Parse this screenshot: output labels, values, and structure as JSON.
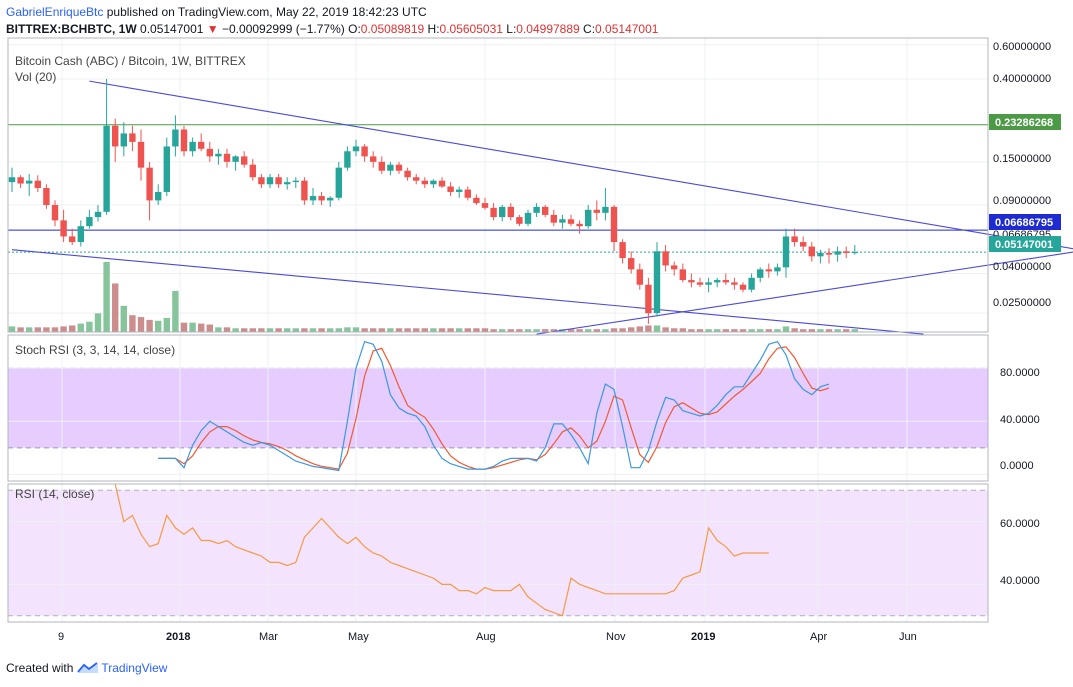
{
  "header": {
    "author": "GabrielEnriqueBtc",
    "published_text": "published on TradingView.com, May 22, 2019 18:42:23 UTC",
    "symbol": "BITTREX:BCHBTC, 1W",
    "last": "0.05147001",
    "change_arrow": "▼",
    "change": "−0.00092999 (−1.77%)",
    "o_label": "O:",
    "o": "0.05089819",
    "h_label": "H:",
    "h": "0.05605031",
    "l_label": "L:",
    "l": "0.04997889",
    "c_label": "C:",
    "c": "0.05147001"
  },
  "price_pane": {
    "title": "Bitcoin Cash (ABC) / Bitcoin, 1W, BITTREX",
    "vol_label": "Vol (20)",
    "price_labels": [
      "0.60000000",
      "0.40000000",
      "0.15000000",
      "0.09000000",
      "0.04000000",
      "0.02500000"
    ],
    "marker_green": "0.23286268",
    "marker_blue": "0.06686795",
    "marker_teal": "0.05147001",
    "hidden_marker": "0.06686795"
  },
  "stoch_pane": {
    "title": "Stoch RSI (3, 3, 14, 14, close)",
    "labels": [
      "80.0000",
      "40.0000",
      "0.0000"
    ]
  },
  "rsi_pane": {
    "title": "RSI (14, close)",
    "labels": [
      "60.0000",
      "40.0000"
    ]
  },
  "time_axis": [
    "9",
    "2018",
    "Mar",
    "May",
    "Aug",
    "Nov",
    "2019",
    "Apr",
    "Jun"
  ],
  "footer": {
    "created_with": "Created with",
    "brand": "TradingView"
  },
  "colors": {
    "up": "#26a69a",
    "down": "#ef5350",
    "vol_up": "#86c49c",
    "vol_down": "#cc8d8d",
    "trend": "#4a4ad8",
    "green_line": "#4c9a45",
    "blue_line": "#1d2bd0",
    "stoch_k": "#3d98e0",
    "stoch_d": "#f05a30",
    "rsi": "#f59a45",
    "stoch_band": "#e6ccff",
    "rsi_band": "#f3e3fd"
  },
  "chart_data": [
    {
      "type": "candlestick",
      "title": "Bitcoin Cash (ABC) / Bitcoin, 1W, BITTREX",
      "yscale": "log",
      "ylim": [
        0.02,
        0.65
      ],
      "x_ticks": [
        "9",
        "2018",
        "Mar",
        "May",
        "Aug",
        "Nov",
        "2019",
        "Apr",
        "Jun"
      ],
      "candles": [
        [
          0.118,
          0.14,
          0.105,
          0.125
        ],
        [
          0.125,
          0.128,
          0.11,
          0.116
        ],
        [
          0.116,
          0.13,
          0.1,
          0.12
        ],
        [
          0.12,
          0.128,
          0.105,
          0.11
        ],
        [
          0.11,
          0.115,
          0.086,
          0.09
        ],
        [
          0.09,
          0.095,
          0.07,
          0.075
        ],
        [
          0.075,
          0.085,
          0.058,
          0.062
        ],
        [
          0.062,
          0.068,
          0.056,
          0.058
        ],
        [
          0.058,
          0.075,
          0.055,
          0.07
        ],
        [
          0.07,
          0.085,
          0.068,
          0.078
        ],
        [
          0.078,
          0.09,
          0.074,
          0.083
        ],
        [
          0.083,
          0.4,
          0.08,
          0.23
        ],
        [
          0.23,
          0.25,
          0.15,
          0.18
        ],
        [
          0.18,
          0.24,
          0.16,
          0.21
        ],
        [
          0.21,
          0.23,
          0.17,
          0.19
        ],
        [
          0.19,
          0.22,
          0.12,
          0.14
        ],
        [
          0.14,
          0.15,
          0.075,
          0.095
        ],
        [
          0.095,
          0.115,
          0.09,
          0.105
        ],
        [
          0.105,
          0.2,
          0.1,
          0.18
        ],
        [
          0.18,
          0.26,
          0.16,
          0.22
        ],
        [
          0.22,
          0.23,
          0.16,
          0.17
        ],
        [
          0.17,
          0.2,
          0.16,
          0.19
        ],
        [
          0.19,
          0.21,
          0.17,
          0.175
        ],
        [
          0.175,
          0.19,
          0.15,
          0.16
        ],
        [
          0.16,
          0.175,
          0.145,
          0.165
        ],
        [
          0.165,
          0.175,
          0.14,
          0.15
        ],
        [
          0.15,
          0.162,
          0.135,
          0.16
        ],
        [
          0.16,
          0.17,
          0.14,
          0.145
        ],
        [
          0.145,
          0.155,
          0.12,
          0.125
        ],
        [
          0.125,
          0.13,
          0.11,
          0.115
        ],
        [
          0.115,
          0.13,
          0.11,
          0.125
        ],
        [
          0.125,
          0.13,
          0.11,
          0.115
        ],
        [
          0.115,
          0.125,
          0.108,
          0.118
        ],
        [
          0.118,
          0.125,
          0.11,
          0.12
        ],
        [
          0.12,
          0.125,
          0.09,
          0.095
        ],
        [
          0.095,
          0.11,
          0.09,
          0.1
        ],
        [
          0.1,
          0.105,
          0.09,
          0.095
        ],
        [
          0.095,
          0.1,
          0.088,
          0.098
        ],
        [
          0.098,
          0.15,
          0.095,
          0.14
        ],
        [
          0.14,
          0.18,
          0.135,
          0.17
        ],
        [
          0.17,
          0.195,
          0.16,
          0.18
        ],
        [
          0.18,
          0.185,
          0.15,
          0.16
        ],
        [
          0.16,
          0.17,
          0.14,
          0.15
        ],
        [
          0.15,
          0.16,
          0.13,
          0.135
        ],
        [
          0.135,
          0.15,
          0.128,
          0.145
        ],
        [
          0.145,
          0.15,
          0.13,
          0.135
        ],
        [
          0.135,
          0.14,
          0.12,
          0.125
        ],
        [
          0.125,
          0.13,
          0.115,
          0.12
        ],
        [
          0.12,
          0.125,
          0.11,
          0.115
        ],
        [
          0.115,
          0.122,
          0.11,
          0.12
        ],
        [
          0.12,
          0.125,
          0.11,
          0.112
        ],
        [
          0.112,
          0.118,
          0.1,
          0.105
        ],
        [
          0.105,
          0.112,
          0.098,
          0.108
        ],
        [
          0.108,
          0.112,
          0.095,
          0.098
        ],
        [
          0.098,
          0.102,
          0.09,
          0.092
        ],
        [
          0.092,
          0.098,
          0.085,
          0.087
        ],
        [
          0.087,
          0.092,
          0.075,
          0.078
        ],
        [
          0.078,
          0.09,
          0.074,
          0.088
        ],
        [
          0.088,
          0.092,
          0.075,
          0.078
        ],
        [
          0.078,
          0.08,
          0.07,
          0.072
        ],
        [
          0.072,
          0.085,
          0.07,
          0.082
        ],
        [
          0.082,
          0.092,
          0.078,
          0.088
        ],
        [
          0.088,
          0.09,
          0.078,
          0.08
        ],
        [
          0.08,
          0.085,
          0.07,
          0.073
        ],
        [
          0.073,
          0.08,
          0.068,
          0.076
        ],
        [
          0.076,
          0.08,
          0.07,
          0.072
        ],
        [
          0.072,
          0.075,
          0.064,
          0.07
        ],
        [
          0.07,
          0.09,
          0.068,
          0.085
        ],
        [
          0.085,
          0.095,
          0.075,
          0.082
        ],
        [
          0.082,
          0.11,
          0.075,
          0.088
        ],
        [
          0.088,
          0.09,
          0.052,
          0.058
        ],
        [
          0.058,
          0.06,
          0.045,
          0.048
        ],
        [
          0.048,
          0.052,
          0.04,
          0.042
        ],
        [
          0.042,
          0.045,
          0.033,
          0.035
        ],
        [
          0.035,
          0.038,
          0.022,
          0.025
        ],
        [
          0.025,
          0.058,
          0.024,
          0.052
        ],
        [
          0.052,
          0.056,
          0.041,
          0.044
        ],
        [
          0.044,
          0.046,
          0.039,
          0.042
        ],
        [
          0.042,
          0.045,
          0.036,
          0.037
        ],
        [
          0.037,
          0.04,
          0.034,
          0.036
        ],
        [
          0.036,
          0.038,
          0.034,
          0.035
        ],
        [
          0.035,
          0.038,
          0.032,
          0.036
        ],
        [
          0.036,
          0.038,
          0.034,
          0.037
        ],
        [
          0.037,
          0.04,
          0.035,
          0.036
        ],
        [
          0.036,
          0.038,
          0.033,
          0.035
        ],
        [
          0.035,
          0.036,
          0.032,
          0.033
        ],
        [
          0.033,
          0.04,
          0.032,
          0.038
        ],
        [
          0.038,
          0.043,
          0.036,
          0.042
        ],
        [
          0.042,
          0.045,
          0.038,
          0.041
        ],
        [
          0.041,
          0.045,
          0.039,
          0.043
        ],
        [
          0.043,
          0.068,
          0.038,
          0.062
        ],
        [
          0.062,
          0.068,
          0.055,
          0.058
        ],
        [
          0.058,
          0.062,
          0.052,
          0.055
        ],
        [
          0.055,
          0.058,
          0.046,
          0.049
        ],
        [
          0.049,
          0.053,
          0.045,
          0.051
        ],
        [
          0.051,
          0.054,
          0.045,
          0.05
        ],
        [
          0.05,
          0.055,
          0.046,
          0.052
        ],
        [
          0.052,
          0.055,
          0.048,
          0.051
        ],
        [
          0.051,
          0.056,
          0.05,
          0.0515
        ]
      ],
      "volume": [
        6,
        5,
        5,
        5,
        5,
        5,
        6,
        7,
        9,
        11,
        20,
        75,
        52,
        28,
        18,
        16,
        13,
        12,
        15,
        44,
        10,
        10,
        9,
        8,
        5,
        5,
        4,
        4,
        4,
        4,
        4,
        4,
        4,
        4,
        4,
        4,
        4,
        4,
        4,
        5,
        5,
        4,
        4,
        4,
        4,
        4,
        4,
        4,
        4,
        4,
        4,
        4,
        4,
        4,
        4,
        4,
        3,
        3,
        3,
        3,
        3,
        3,
        3,
        3,
        3,
        3,
        3,
        3,
        3,
        3,
        4,
        4,
        5,
        6,
        7,
        7,
        5,
        4,
        4,
        3,
        3,
        3,
        3,
        3,
        3,
        3,
        3,
        3,
        3,
        3,
        6,
        4,
        3,
        3,
        3,
        3,
        3,
        3,
        3
      ],
      "horizontal_levels": [
        0.23286268,
        0.06686795,
        0.05147001
      ],
      "trendlines": [
        {
          "from": {
            "bar": 9,
            "price": 0.39
          },
          "to": {
            "bar": 131,
            "price": 0.047
          }
        },
        {
          "from": {
            "bar": 0,
            "price": 0.053
          },
          "to": {
            "bar": 106,
            "price": 0.0195
          }
        },
        {
          "from": {
            "bar": 61,
            "price": 0.0195
          },
          "to": {
            "bar": 131,
            "price": 0.058
          }
        }
      ]
    },
    {
      "type": "line",
      "title": "Stoch RSI (3, 3, 14, 14, close)",
      "ylim": [
        -5,
        105
      ],
      "band": [
        20,
        80
      ],
      "series": [
        {
          "name": "K",
          "start_bar": 17,
          "values": [
            12,
            12,
            12,
            5,
            22,
            33,
            40,
            36,
            32,
            28,
            24,
            22,
            24,
            22,
            18,
            14,
            10,
            8,
            6,
            5,
            4,
            3,
            40,
            80,
            100,
            98,
            85,
            60,
            50,
            46,
            44,
            36,
            22,
            12,
            8,
            6,
            4,
            4,
            4,
            6,
            10,
            12,
            12,
            12,
            10,
            20,
            38,
            38,
            30,
            20,
            8,
            46,
            68,
            64,
            36,
            5,
            5,
            18,
            40,
            58,
            56,
            48,
            46,
            44,
            46,
            52,
            60,
            66,
            66,
            76,
            86,
            98,
            100,
            90,
            72,
            64,
            60,
            66,
            68
          ]
        },
        {
          "name": "D",
          "start_bar": 17,
          "values": [
            12,
            12,
            12,
            8,
            14,
            24,
            32,
            36,
            36,
            33,
            29,
            26,
            24,
            23,
            21,
            18,
            14,
            11,
            8,
            6,
            5,
            4,
            16,
            42,
            74,
            93,
            95,
            82,
            66,
            52,
            47,
            43,
            34,
            23,
            14,
            9,
            6,
            4,
            4,
            5,
            7,
            9,
            11,
            12,
            11,
            15,
            23,
            32,
            35,
            29,
            20,
            25,
            40,
            59,
            56,
            35,
            15,
            9,
            21,
            39,
            51,
            54,
            50,
            46,
            45,
            47,
            53,
            59,
            64,
            70,
            76,
            87,
            95,
            96,
            88,
            76,
            65,
            63,
            65
          ]
        }
      ]
    },
    {
      "type": "line",
      "title": "RSI (14, close)",
      "ylim": [
        28,
        72
      ],
      "band": [
        30,
        70
      ],
      "series": [
        {
          "name": "RSI",
          "start_bar": 12,
          "values": [
            80,
            60,
            62,
            56,
            52,
            53,
            62,
            58,
            56,
            58,
            54,
            54,
            53,
            54,
            52,
            51,
            50,
            49,
            47,
            47,
            46,
            47,
            55,
            58,
            61,
            58,
            55,
            53,
            55,
            52,
            50,
            49,
            47,
            46,
            45,
            44,
            43,
            42,
            40,
            40,
            38,
            38,
            37,
            39,
            38,
            38,
            38,
            40,
            36,
            34,
            32,
            31,
            30,
            42,
            40,
            39,
            38,
            37,
            37,
            37,
            37,
            37,
            37,
            37,
            37,
            38,
            42,
            43,
            44,
            58,
            54,
            52,
            49,
            50,
            50,
            50,
            50
          ]
        }
      ]
    }
  ]
}
